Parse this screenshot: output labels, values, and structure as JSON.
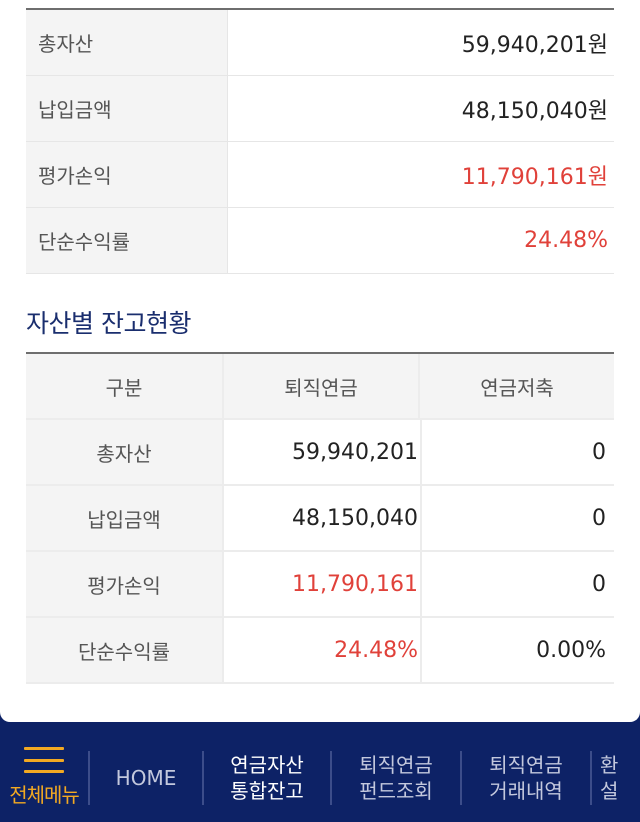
{
  "summary": [
    {
      "label": "총자산",
      "value": "59,940,201원",
      "highlight": false
    },
    {
      "label": "납입금액",
      "value": "48,150,040원",
      "highlight": false
    },
    {
      "label": "평가손익",
      "value": "11,790,161원",
      "highlight": true
    },
    {
      "label": "단순수익률",
      "value": "24.48%",
      "highlight": true
    }
  ],
  "section": {
    "title": "자산별 잔고현황"
  },
  "table": {
    "headers": [
      "구분",
      "퇴직연금",
      "연금저축"
    ],
    "rows": [
      {
        "label": "총자산",
        "retire": "59,940,201",
        "savings": "0",
        "highlight": false
      },
      {
        "label": "납입금액",
        "retire": "48,150,040",
        "savings": "0",
        "highlight": false
      },
      {
        "label": "평가손익",
        "retire": "11,790,161",
        "savings": "0",
        "highlight": true
      },
      {
        "label": "단순수익률",
        "retire": "24.48%",
        "savings": "0.00%",
        "highlight": true
      }
    ]
  },
  "nav": {
    "menu_label": "전체메뉴",
    "home": "HOME",
    "items": [
      {
        "line1": "연금자산",
        "line2": "통합잔고",
        "active": true
      },
      {
        "line1": "퇴직연금",
        "line2": "펀드조회",
        "active": false
      },
      {
        "line1": "퇴직연금",
        "line2": "거래내역",
        "active": false
      },
      {
        "line1": "환",
        "line2": "설",
        "active": false
      }
    ]
  },
  "colors": {
    "accent_red": "#e0413a",
    "title_navy": "#1a2e6e",
    "nav_bg": "#0d2266",
    "menu_orange": "#f2a922"
  }
}
